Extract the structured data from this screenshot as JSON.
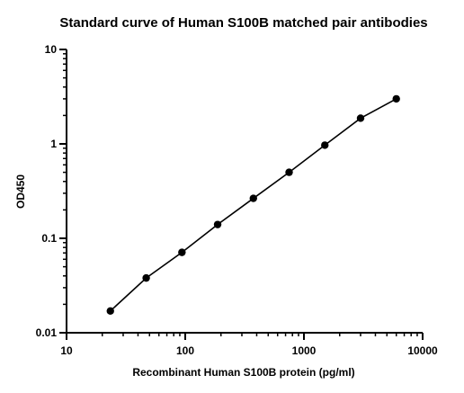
{
  "chart_data": {
    "type": "scatter",
    "title": "Standard curve of Human S100B matched pair antibodies",
    "xlabel": "Recombinant Human S100B protein (pg/ml)",
    "ylabel": "OD450",
    "x_scale": "log",
    "y_scale": "log",
    "xlim": [
      10,
      10000
    ],
    "ylim": [
      0.01,
      10
    ],
    "x_ticks": [
      "10",
      "100",
      "1000",
      "10000"
    ],
    "y_ticks": [
      "0.01",
      "0.1",
      "1",
      "10"
    ],
    "grid": false,
    "legend": "none",
    "series": [
      {
        "x": [
          23.4,
          46.9,
          93.8,
          187.5,
          375,
          750,
          1500,
          3000,
          6000
        ],
        "y": [
          0.017,
          0.038,
          0.071,
          0.14,
          0.265,
          0.5,
          0.97,
          1.87,
          3.0
        ],
        "fit_line": true
      }
    ],
    "colors": {
      "marker": "#000000",
      "line": "#000000",
      "axis": "#000000"
    }
  }
}
